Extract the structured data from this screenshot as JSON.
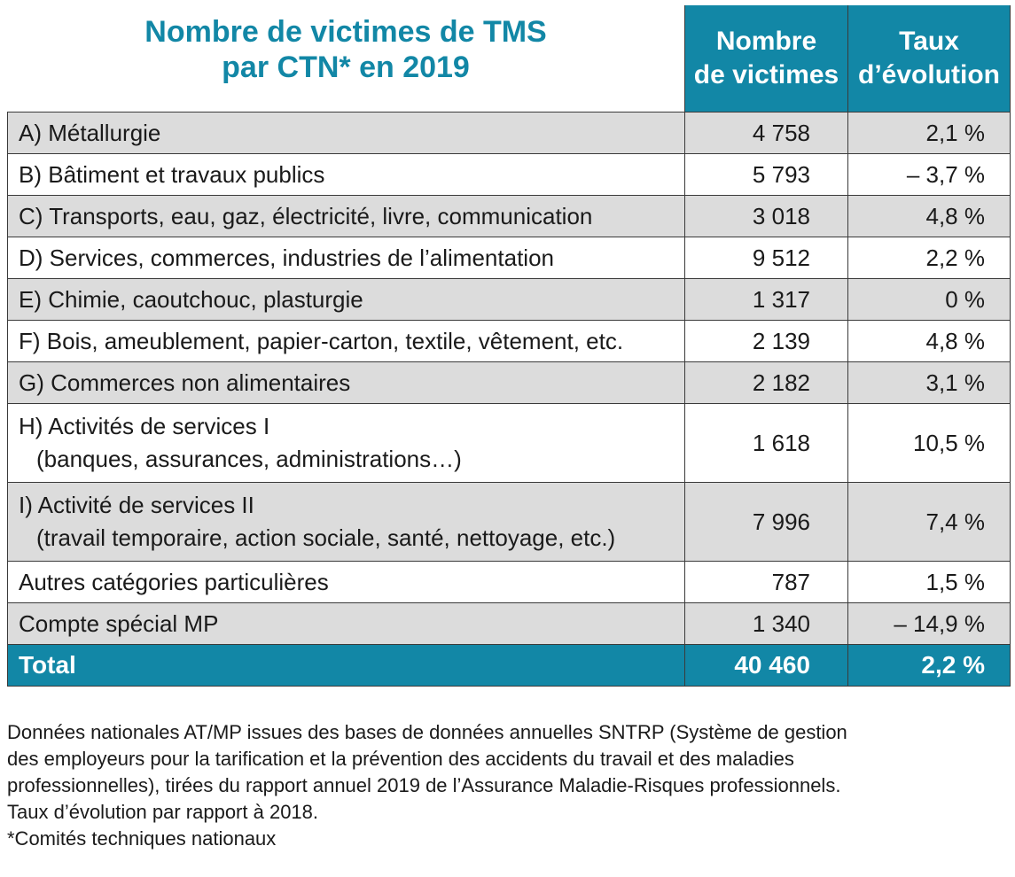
{
  "title": {
    "line1": "Nombre de victimes de TMS",
    "line2": "par CTN* en 2019"
  },
  "headers": {
    "victims_line1": "Nombre",
    "victims_line2": "de victimes",
    "rate_line1": "Taux",
    "rate_line2": "d’évolution"
  },
  "rows": [
    {
      "label": "A) Métallurgie",
      "victims": "4 758",
      "rate": "2,1 %"
    },
    {
      "label": "B) Bâtiment et travaux publics",
      "victims": "5 793",
      "rate": "– 3,7 %"
    },
    {
      "label": "C) Transports, eau, gaz, électricité, livre, communication",
      "victims": "3 018",
      "rate": "4,8 %"
    },
    {
      "label": "D) Services, commerces, industries de l’alimentation",
      "victims": "9 512",
      "rate": "2,2 %"
    },
    {
      "label": "E) Chimie, caoutchouc, plasturgie",
      "victims": "1 317",
      "rate": "0 %"
    },
    {
      "label": "F) Bois, ameublement, papier-carton, textile, vêtement, etc.",
      "victims": "2 139",
      "rate": "4,8 %"
    },
    {
      "label": "G) Commerces non alimentaires",
      "victims": "2 182",
      "rate": "3,1 %"
    },
    {
      "label": "H) Activités de services I",
      "label2": "(banques, assurances, administrations…)",
      "victims": "1 618",
      "rate": "10,5 %"
    },
    {
      "label": "I) Activité de services II",
      "label2": "(travail temporaire, action sociale, santé, nettoyage, etc.)",
      "victims": "7 996",
      "rate": "7,4 %"
    },
    {
      "label": "Autres catégories particulières",
      "victims": "787",
      "rate": "1,5 %"
    },
    {
      "label": "Compte spécial MP",
      "victims": "1 340",
      "rate": "– 14,9 %"
    }
  ],
  "total": {
    "label": "Total",
    "victims": "40 460",
    "rate": "2,2 %"
  },
  "notes": [
    "Données nationales AT/MP issues des bases de données annuelles SNTRP (Système de gestion",
    "des employeurs pour la tarification et la prévention des accidents du travail et des maladies",
    "professionnelles), tirées du rapport annuel 2019 de l’Assurance Maladie-Risques professionnels.",
    "Taux d’évolution par rapport à 2018.",
    "*Comités techniques nationaux"
  ],
  "colors": {
    "accent": "#1287a6",
    "row_alt": "#dcdcdc",
    "border": "#3a3a3a"
  }
}
